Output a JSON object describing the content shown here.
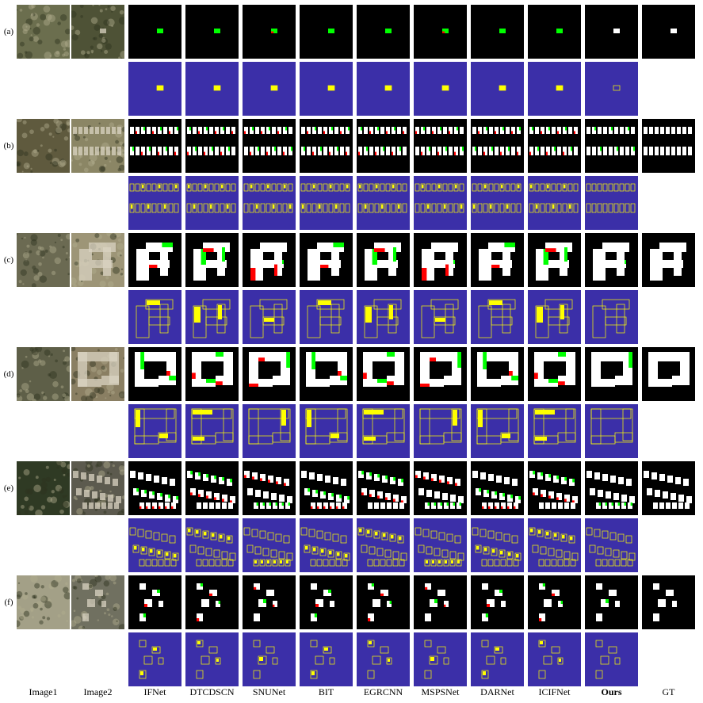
{
  "figure": {
    "row_labels": [
      "(a)",
      "(b)",
      "(c)",
      "(d)",
      "(e)",
      "(f)"
    ],
    "column_labels": [
      "Image1",
      "Image2",
      "IFNet",
      "DTCDSCN",
      "SNUNet",
      "BIT",
      "EGRCNN",
      "MSPSNet",
      "DARNet",
      "ICIFNet",
      "Ours",
      "GT"
    ],
    "bold_column": "Ours",
    "legend_colors": {
      "true_positive": "#ffffff",
      "false_positive": "#00ff00",
      "false_negative": "#ff0000",
      "background": "#000000",
      "error_background": "#3b2fa8",
      "error_mark": "#ffff00"
    }
  }
}
